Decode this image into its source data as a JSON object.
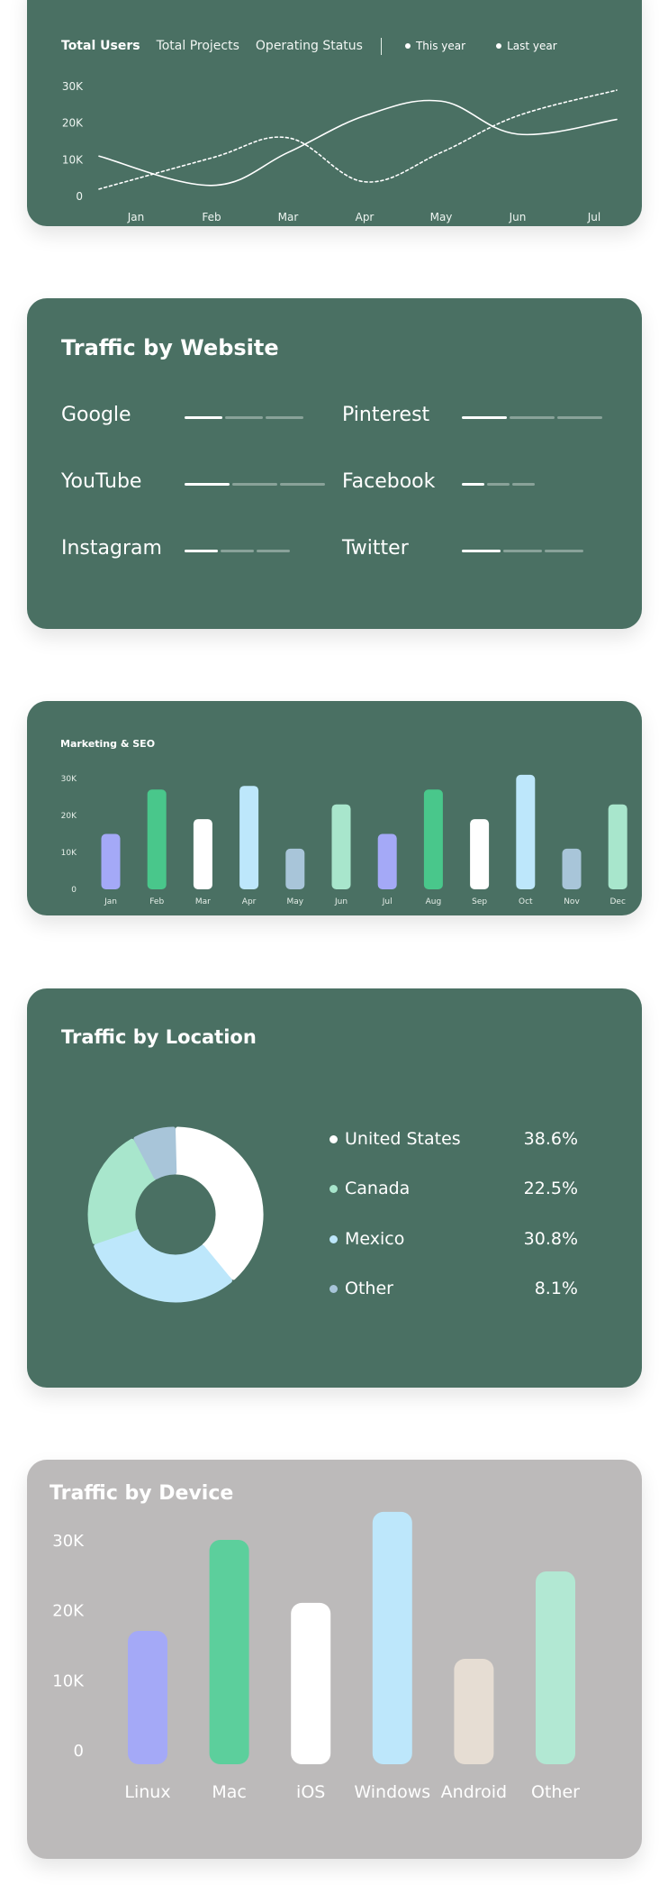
{
  "users_card": {
    "tabs": [
      "Total Users",
      "Total Projects",
      "Operating Status"
    ],
    "legend": [
      "This year",
      "Last year"
    ]
  },
  "website_card": {
    "title": "Traffic by Website",
    "sites": [
      {
        "name": "Google",
        "level": 0.25
      },
      {
        "name": "Pinterest",
        "level": 0.3
      },
      {
        "name": "YouTube",
        "level": 0.3
      },
      {
        "name": "Facebook",
        "level": 0.15
      },
      {
        "name": "Instagram",
        "level": 0.22
      },
      {
        "name": "Twitter",
        "level": 0.26
      }
    ]
  },
  "seo_card": {
    "title": "Marketing & SEO"
  },
  "location_card": {
    "title": "Traffic by Location",
    "rows": [
      {
        "name": "United States",
        "pct": "38.6%",
        "color": "#ffffff"
      },
      {
        "name": "Canada",
        "pct": "22.5%",
        "color": "#a8e6cc"
      },
      {
        "name": "Mexico",
        "pct": "30.8%",
        "color": "#bde7fb"
      },
      {
        "name": "Other",
        "pct": "8.1%",
        "color": "#a8c5d9"
      }
    ]
  },
  "device_card": {
    "title": "Traffic by Device"
  },
  "chart_data": [
    {
      "type": "line",
      "x": [
        "Jan",
        "Feb",
        "Mar",
        "Apr",
        "May",
        "Jun",
        "Jul"
      ],
      "yticks": [
        "0",
        "10K",
        "20K",
        "30K"
      ],
      "ylim": [
        0,
        30000
      ],
      "series": [
        {
          "name": "This year",
          "style": "solid",
          "color": "#ffffff",
          "values": [
            11000,
            3000,
            12000,
            22000,
            26000,
            17000,
            21000
          ]
        },
        {
          "name": "Last year",
          "style": "dashed",
          "color": "#ffffff",
          "values": [
            2000,
            10500,
            16000,
            4000,
            12000,
            22000,
            29000
          ]
        }
      ]
    },
    {
      "type": "bar",
      "title": "Marketing & SEO",
      "categories": [
        "Jan",
        "Feb",
        "Mar",
        "Apr",
        "May",
        "Jun",
        "Jul",
        "Aug",
        "Sep",
        "Oct",
        "Nov",
        "Dec"
      ],
      "values": [
        15000,
        27000,
        19000,
        28000,
        11000,
        23000,
        15000,
        27000,
        19000,
        31000,
        11000,
        23000
      ],
      "colors": [
        "#a4a9f7",
        "#49c78b",
        "#ffffff",
        "#bde7fb",
        "#a8c5d9",
        "#a8e6cc",
        "#a4a9f7",
        "#49c78b",
        "#ffffff",
        "#bde7fb",
        "#a8c5d9",
        "#a8e6cc"
      ],
      "yticks": [
        "0",
        "10K",
        "20K",
        "30K"
      ],
      "ylim": [
        0,
        30000
      ]
    },
    {
      "type": "pie",
      "title": "Traffic by Location",
      "labels": [
        "United States",
        "Canada",
        "Mexico",
        "Other"
      ],
      "values": [
        38.6,
        22.5,
        30.8,
        8.1
      ],
      "colors": [
        "#ffffff",
        "#a8e6cc",
        "#bde7fb",
        "#a8c5d9"
      ]
    },
    {
      "type": "bar",
      "title": "Traffic by Device",
      "categories": [
        "Linux",
        "Mac",
        "iOS",
        "Windows",
        "Android",
        "Other"
      ],
      "values": [
        17000,
        30000,
        21000,
        34000,
        13000,
        25500
      ],
      "colors": [
        "#a4a9f7",
        "#5ccf9c",
        "#ffffff",
        "#bde7fb",
        "#e6ddd3",
        "#b2e8d3"
      ],
      "yticks": [
        "0",
        "10K",
        "20K",
        "30K"
      ],
      "ylim": [
        0,
        30000
      ]
    }
  ]
}
